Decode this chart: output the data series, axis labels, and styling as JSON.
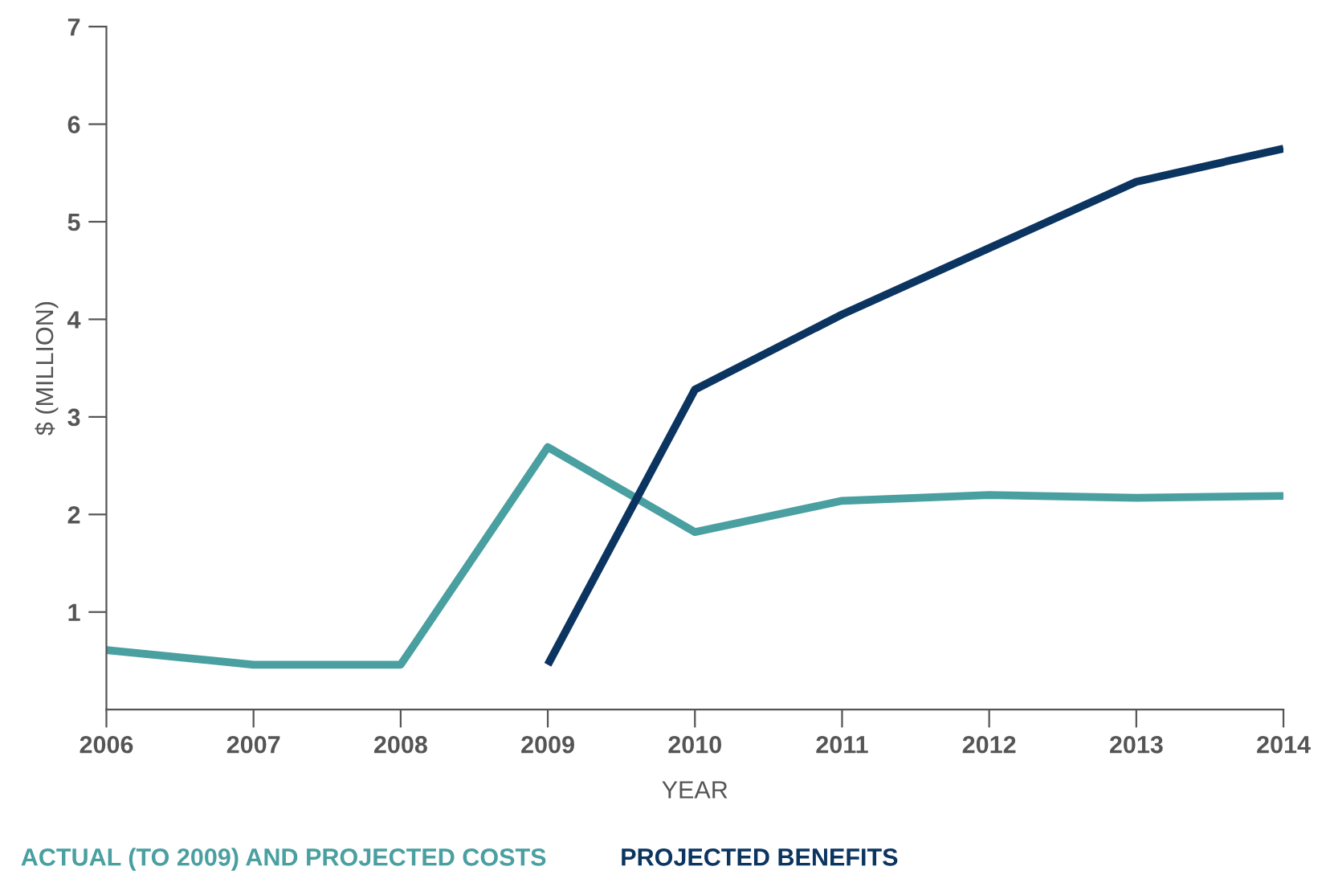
{
  "chart_data": {
    "type": "line",
    "xlabel": "YEAR",
    "ylabel": "$ (MILLION)",
    "x": [
      2006,
      2007,
      2008,
      2009,
      2010,
      2011,
      2012,
      2013,
      2014
    ],
    "series": [
      {
        "name": "ACTUAL (TO 2009) AND PROJECTED COSTS",
        "color": "#4a9fa0",
        "values": [
          0.61,
          0.46,
          0.46,
          2.69,
          1.82,
          2.14,
          2.2,
          2.17,
          2.19
        ]
      },
      {
        "name": "PROJECTED BENEFITS",
        "color": "#0b3560",
        "values": [
          null,
          null,
          null,
          0.46,
          3.28,
          4.05,
          4.73,
          5.41,
          5.75
        ]
      }
    ],
    "xlim": [
      2006,
      2014
    ],
    "xticks": [
      2006,
      2007,
      2008,
      2009,
      2010,
      2011,
      2012,
      2013,
      2014
    ],
    "ylim": [
      0,
      7
    ],
    "yticks": [
      1,
      2,
      3,
      4,
      5,
      6,
      7
    ],
    "grid": false,
    "legend": "bottom",
    "marker": "none",
    "line_style": "solid"
  }
}
